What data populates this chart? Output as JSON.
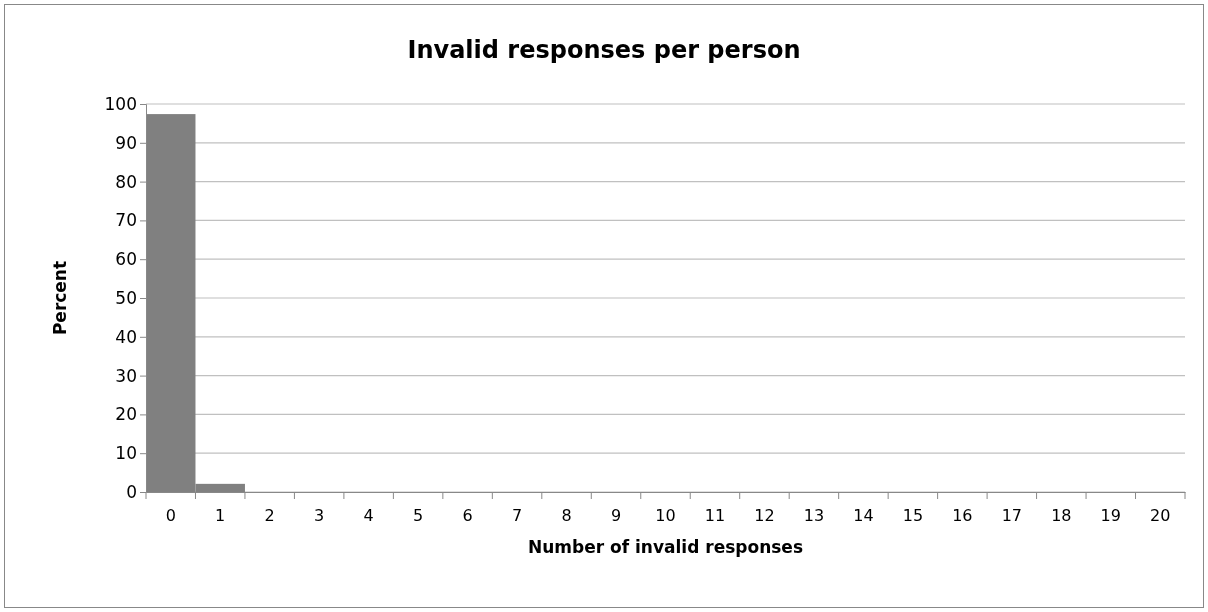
{
  "chart_data": {
    "type": "bar",
    "title": "Invalid responses per person",
    "xlabel": "Number of invalid responses",
    "ylabel": "Percent",
    "categories": [
      "0",
      "1",
      "2",
      "3",
      "4",
      "5",
      "6",
      "7",
      "8",
      "9",
      "10",
      "11",
      "12",
      "13",
      "14",
      "15",
      "16",
      "17",
      "18",
      "19",
      "20"
    ],
    "values": [
      97.4,
      2.1,
      0,
      0,
      0,
      0,
      0,
      0,
      0,
      0,
      0,
      0,
      0,
      0,
      0,
      0,
      0,
      0,
      0,
      0,
      0
    ],
    "color": "#808080",
    "ylim": [
      0,
      100
    ],
    "yticks": [
      0,
      10,
      20,
      30,
      40,
      50,
      60,
      70,
      80,
      90,
      100
    ],
    "grid": "y"
  }
}
